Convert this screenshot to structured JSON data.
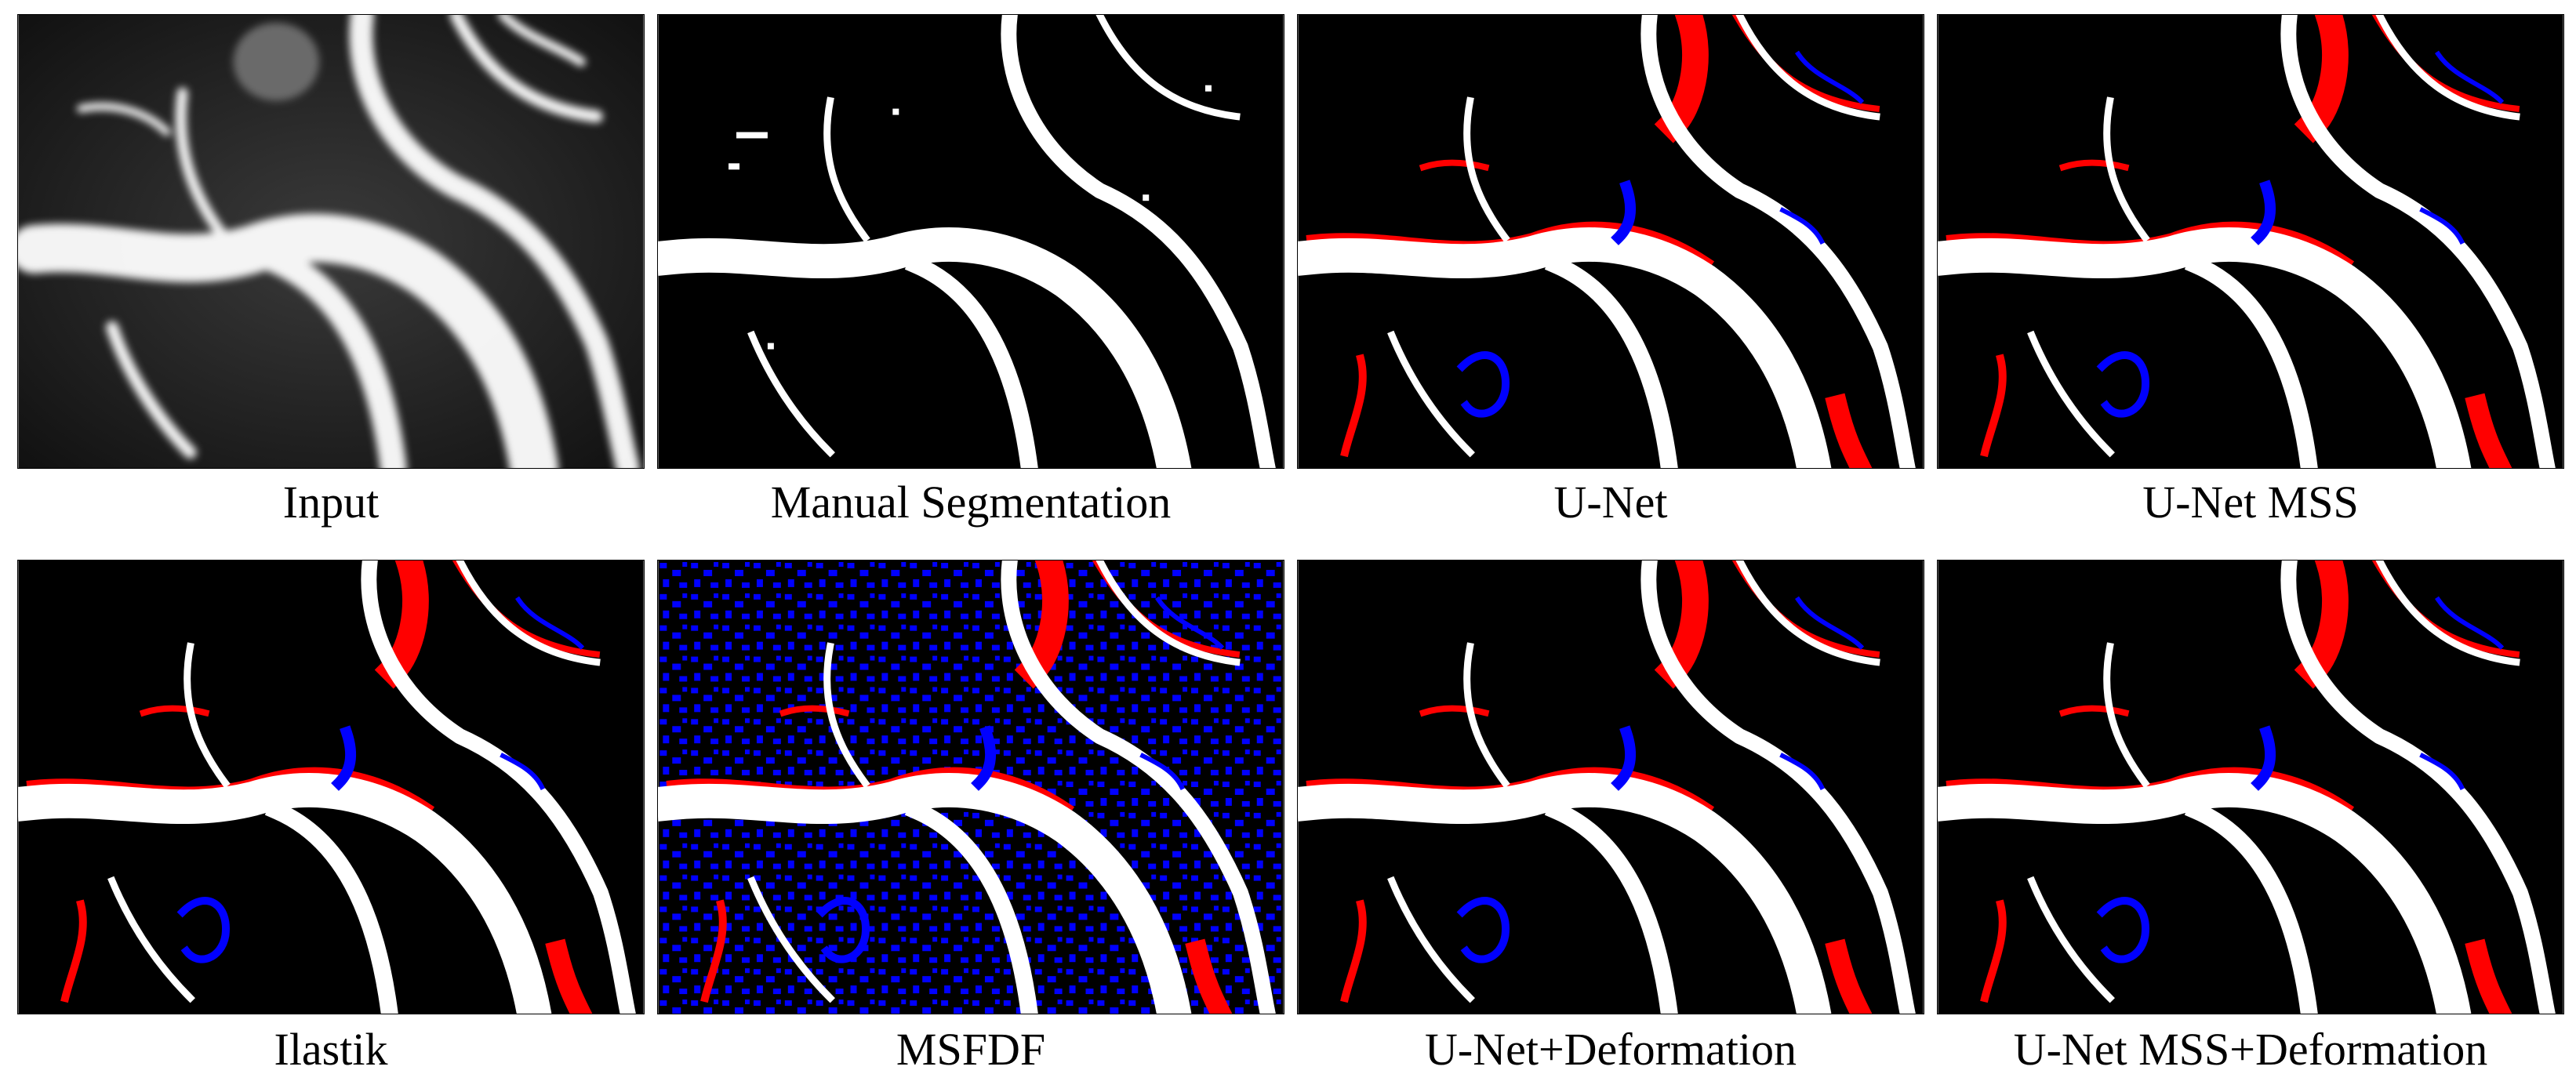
{
  "figure": {
    "panels": [
      {
        "id": "input",
        "caption": "Input"
      },
      {
        "id": "manual",
        "caption": "Manual Segmentation"
      },
      {
        "id": "unet",
        "caption": "U-Net"
      },
      {
        "id": "unet-mss",
        "caption": "U-Net MSS"
      },
      {
        "id": "ilastik",
        "caption": "Ilastik"
      },
      {
        "id": "msfdf",
        "caption": "MSFDF"
      },
      {
        "id": "unet-deform",
        "caption": "U-Net+Deformation"
      },
      {
        "id": "unet-mss-deform",
        "caption": "U-Net MSS+Deformation"
      }
    ]
  },
  "colors": {
    "background": "#000000",
    "vessel": "#ffffff",
    "false_negative": "#ff0000",
    "false_positive": "#0000ff"
  }
}
